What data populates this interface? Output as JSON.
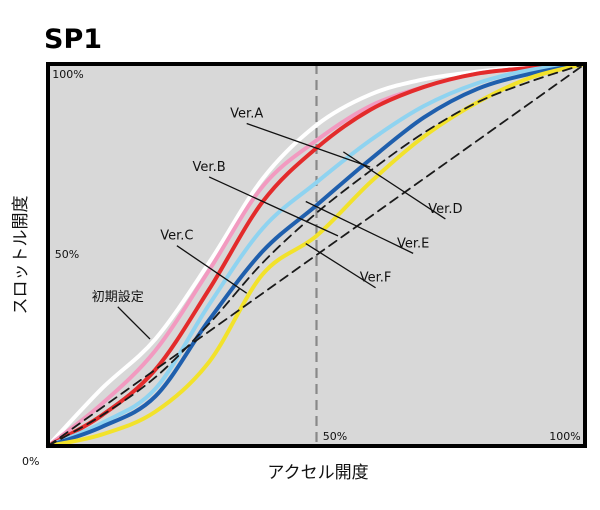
{
  "chart_data": {
    "type": "line",
    "title": "SP1",
    "xlabel": "アクセル開度",
    "ylabel": "スロットル開度",
    "xlim": [
      0,
      100
    ],
    "ylim": [
      0,
      100
    ],
    "grid": false,
    "reference_line_x": 50,
    "x_tick_labels": {
      "origin": "0%",
      "mid": "50%",
      "max": "100%"
    },
    "y_tick_labels": {
      "mid": "50%",
      "max": "100%"
    },
    "series": [
      {
        "name": "初期設定",
        "color": "#ffffff",
        "points": [
          [
            0,
            0
          ],
          [
            10,
            15
          ],
          [
            20,
            28
          ],
          [
            30,
            48
          ],
          [
            40,
            70
          ],
          [
            50,
            84
          ],
          [
            60,
            92
          ],
          [
            70,
            96
          ],
          [
            80,
            98
          ],
          [
            90,
            99.5
          ],
          [
            100,
            100
          ]
        ]
      },
      {
        "name": "Ver.A",
        "color": "#f29ac0",
        "points": [
          [
            0,
            0
          ],
          [
            10,
            11
          ],
          [
            20,
            25
          ],
          [
            30,
            46
          ],
          [
            40,
            68
          ],
          [
            50,
            80
          ],
          [
            60,
            89
          ],
          [
            70,
            94
          ],
          [
            80,
            97.5
          ],
          [
            90,
            99
          ],
          [
            100,
            100
          ]
        ]
      },
      {
        "name": "Ver.D",
        "color": "#e32b2b",
        "points": [
          [
            0,
            0
          ],
          [
            10,
            8
          ],
          [
            20,
            20
          ],
          [
            30,
            41
          ],
          [
            40,
            64
          ],
          [
            50,
            78
          ],
          [
            60,
            88
          ],
          [
            70,
            94
          ],
          [
            80,
            97.5
          ],
          [
            90,
            99
          ],
          [
            100,
            100
          ]
        ]
      },
      {
        "name": "Ver.E",
        "color": "#8fd3f0",
        "points": [
          [
            0,
            0
          ],
          [
            10,
            6
          ],
          [
            20,
            15
          ],
          [
            30,
            37
          ],
          [
            40,
            57
          ],
          [
            50,
            69
          ],
          [
            60,
            80
          ],
          [
            70,
            89
          ],
          [
            80,
            95
          ],
          [
            90,
            98.5
          ],
          [
            100,
            100
          ]
        ]
      },
      {
        "name": "Ver.B",
        "color": "#1f5fad",
        "points": [
          [
            0,
            0
          ],
          [
            10,
            5
          ],
          [
            20,
            13
          ],
          [
            30,
            33
          ],
          [
            40,
            51
          ],
          [
            50,
            63
          ],
          [
            60,
            75
          ],
          [
            70,
            86
          ],
          [
            80,
            93.5
          ],
          [
            90,
            97.5
          ],
          [
            100,
            100
          ]
        ]
      },
      {
        "name": "Ver.F",
        "color": "#f2e22b",
        "points": [
          [
            0,
            0
          ],
          [
            10,
            3
          ],
          [
            20,
            9
          ],
          [
            30,
            22
          ],
          [
            40,
            45
          ],
          [
            50,
            55
          ],
          [
            60,
            69
          ],
          [
            70,
            81
          ],
          [
            80,
            90
          ],
          [
            90,
            96.5
          ],
          [
            100,
            100
          ]
        ]
      },
      {
        "name": "Ver.C",
        "color": "#1a1a1a",
        "dashed": true,
        "points": [
          [
            0,
            0
          ],
          [
            10,
            8
          ],
          [
            20,
            18
          ],
          [
            30,
            32
          ],
          [
            40,
            48
          ],
          [
            50,
            61
          ],
          [
            60,
            72
          ],
          [
            70,
            82
          ],
          [
            80,
            90
          ],
          [
            90,
            95.5
          ],
          [
            100,
            100
          ]
        ]
      },
      {
        "name": "",
        "color": "#1a1a1a",
        "dashed": true,
        "points": [
          [
            0,
            0
          ],
          [
            100,
            100
          ]
        ]
      }
    ],
    "annotations": [
      {
        "text": "Ver.A",
        "label": [
          37,
          86
        ],
        "target": [
          60,
          73
        ]
      },
      {
        "text": "Ver.B",
        "label": [
          30,
          72
        ],
        "target": [
          54,
          55
        ]
      },
      {
        "text": "Ver.C",
        "label": [
          24,
          54
        ],
        "target": [
          37,
          40
        ]
      },
      {
        "text": "初期設定",
        "label": [
          13,
          38
        ],
        "target": [
          19,
          28
        ]
      },
      {
        "text": "Ver.D",
        "label": [
          74,
          61
        ],
        "target": [
          55,
          77
        ]
      },
      {
        "text": "Ver.E",
        "label": [
          68,
          52
        ],
        "target": [
          48,
          64
        ]
      },
      {
        "text": "Ver.F",
        "label": [
          61,
          43
        ],
        "target": [
          48,
          53
        ]
      }
    ]
  }
}
